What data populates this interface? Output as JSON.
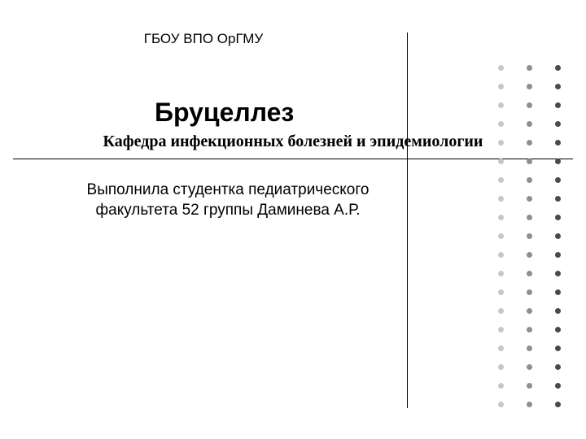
{
  "institution": "ГБОУ ВПО ОрГМУ",
  "title": "Бруцеллез",
  "subtitle": "Кафедра инфекционных болезней и эпидемиологии",
  "author_line1": "Выполнила студентка педиатрического",
  "author_line2": "факультета 52 группы Даминева А.Р.",
  "decor": {
    "dot_color_dark": "#4a4a4a",
    "dot_color_mid": "#8f8f8f",
    "dot_color_light": "#c7c7c7",
    "rows": 19
  }
}
